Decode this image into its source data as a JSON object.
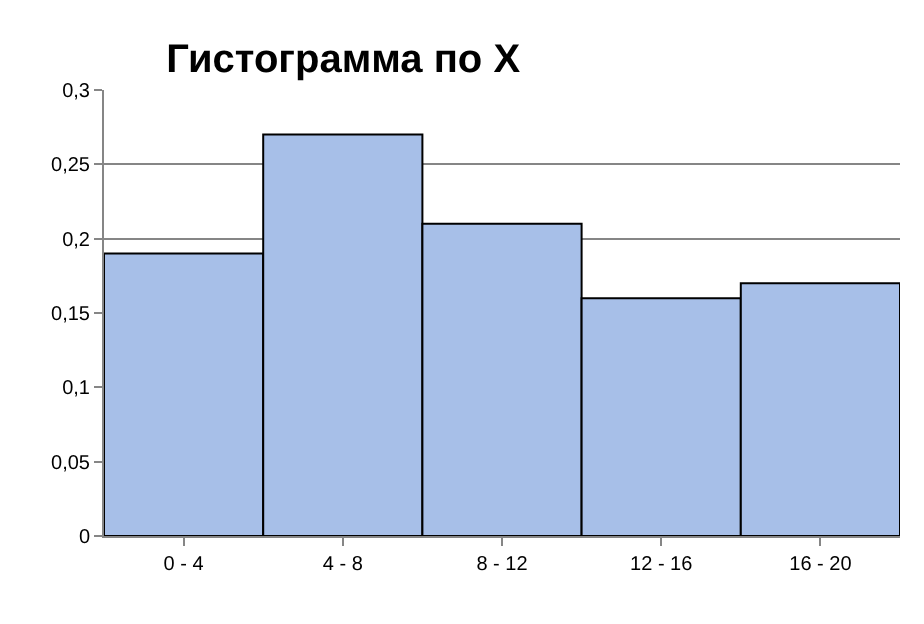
{
  "chart_data": {
    "type": "bar",
    "title": "Гистограмма по X",
    "categories": [
      "0 - 4",
      "4 - 8",
      "8 - 12",
      "12 - 16",
      "16 - 20"
    ],
    "values": [
      0.19,
      0.27,
      0.21,
      0.16,
      0.17
    ],
    "color": "#a7bfe8",
    "ylim": [
      0,
      0.3
    ],
    "yticks": [
      0,
      {
        "value": 0.05,
        "label": "0,05"
      },
      {
        "value": 0.1,
        "label": "0,1"
      },
      {
        "value": 0.15,
        "label": "0,15"
      },
      {
        "value": 0.2,
        "label": "0,2"
      },
      {
        "value": 0.25,
        "label": "0,25"
      },
      {
        "value": 0.3,
        "label": "0,3"
      }
    ],
    "grid": "y"
  }
}
